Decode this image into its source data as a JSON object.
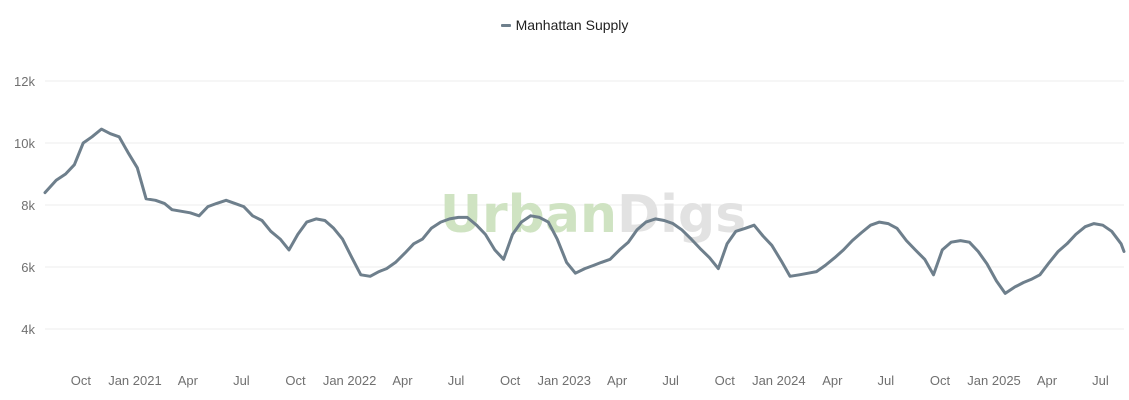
{
  "legend": {
    "label": "Manhattan Supply"
  },
  "watermark": {
    "part1": "Urban",
    "part2": "Digs",
    "color1": "#cfe3c2",
    "color2": "#e2e2e2"
  },
  "colors": {
    "series": "#6e7f8c",
    "grid": "#ececec",
    "tick_text": "#707070"
  },
  "chart_data": {
    "type": "line",
    "title": "",
    "xlabel": "",
    "ylabel": "",
    "ylim": [
      3000,
      13000
    ],
    "yticks": [
      4000,
      6000,
      8000,
      10000,
      12000
    ],
    "ytick_labels": [
      "4k",
      "6k",
      "8k",
      "10k",
      "12k"
    ],
    "xlim": [
      "2020-08-01",
      "2025-08-10"
    ],
    "xticks": [
      {
        "date": "2020-10-01",
        "label": "Oct"
      },
      {
        "date": "2021-01-01",
        "label": "Jan 2021"
      },
      {
        "date": "2021-04-01",
        "label": "Apr"
      },
      {
        "date": "2021-07-01",
        "label": "Jul"
      },
      {
        "date": "2021-10-01",
        "label": "Oct"
      },
      {
        "date": "2022-01-01",
        "label": "Jan 2022"
      },
      {
        "date": "2022-04-01",
        "label": "Apr"
      },
      {
        "date": "2022-07-01",
        "label": "Jul"
      },
      {
        "date": "2022-10-01",
        "label": "Oct"
      },
      {
        "date": "2023-01-01",
        "label": "Jan 2023"
      },
      {
        "date": "2023-04-01",
        "label": "Apr"
      },
      {
        "date": "2023-07-01",
        "label": "Jul"
      },
      {
        "date": "2023-10-01",
        "label": "Oct"
      },
      {
        "date": "2024-01-01",
        "label": "Jan 2024"
      },
      {
        "date": "2024-04-01",
        "label": "Apr"
      },
      {
        "date": "2024-07-01",
        "label": "Jul"
      },
      {
        "date": "2024-10-01",
        "label": "Oct"
      },
      {
        "date": "2025-01-01",
        "label": "Jan 2025"
      },
      {
        "date": "2025-04-01",
        "label": "Apr"
      },
      {
        "date": "2025-07-01",
        "label": "Jul"
      }
    ],
    "grid": true,
    "legend_position": "top-center",
    "series": [
      {
        "name": "Manhattan Supply",
        "x": [
          "2020-08-01",
          "2020-08-20",
          "2020-09-05",
          "2020-09-20",
          "2020-10-05",
          "2020-10-20",
          "2020-11-05",
          "2020-11-20",
          "2020-12-05",
          "2020-12-20",
          "2021-01-05",
          "2021-01-20",
          "2021-02-05",
          "2021-02-20",
          "2021-03-05",
          "2021-03-20",
          "2021-04-05",
          "2021-04-20",
          "2021-05-05",
          "2021-05-20",
          "2021-06-05",
          "2021-06-20",
          "2021-07-05",
          "2021-07-20",
          "2021-08-05",
          "2021-08-20",
          "2021-09-05",
          "2021-09-20",
          "2021-10-05",
          "2021-10-20",
          "2021-11-05",
          "2021-11-20",
          "2021-12-05",
          "2021-12-20",
          "2022-01-05",
          "2022-01-20",
          "2022-02-05",
          "2022-02-20",
          "2022-03-05",
          "2022-03-20",
          "2022-04-05",
          "2022-04-20",
          "2022-05-05",
          "2022-05-20",
          "2022-06-05",
          "2022-06-20",
          "2022-07-05",
          "2022-07-20",
          "2022-08-05",
          "2022-08-20",
          "2022-09-05",
          "2022-09-20",
          "2022-10-05",
          "2022-10-20",
          "2022-11-05",
          "2022-11-20",
          "2022-12-05",
          "2022-12-20",
          "2023-01-05",
          "2023-01-20",
          "2023-02-05",
          "2023-02-20",
          "2023-03-05",
          "2023-03-20",
          "2023-04-05",
          "2023-04-20",
          "2023-05-05",
          "2023-05-20",
          "2023-06-05",
          "2023-06-20",
          "2023-07-05",
          "2023-07-20",
          "2023-08-05",
          "2023-08-20",
          "2023-09-05",
          "2023-09-20",
          "2023-10-05",
          "2023-10-20",
          "2023-11-05",
          "2023-11-20",
          "2023-12-05",
          "2023-12-20",
          "2024-01-05",
          "2024-01-20",
          "2024-02-05",
          "2024-02-20",
          "2024-03-05",
          "2024-03-20",
          "2024-04-05",
          "2024-04-20",
          "2024-05-05",
          "2024-05-20",
          "2024-06-05",
          "2024-06-20",
          "2024-07-05",
          "2024-07-20",
          "2024-08-05",
          "2024-08-20",
          "2024-09-05",
          "2024-09-20",
          "2024-10-05",
          "2024-10-20",
          "2024-11-05",
          "2024-11-20",
          "2024-12-05",
          "2024-12-20",
          "2025-01-05",
          "2025-01-20",
          "2025-02-05",
          "2025-02-20",
          "2025-03-05",
          "2025-03-20",
          "2025-04-05",
          "2025-04-20",
          "2025-05-05",
          "2025-05-20",
          "2025-06-05",
          "2025-06-20",
          "2025-07-05",
          "2025-07-20",
          "2025-08-05",
          "2025-08-10"
        ],
        "values": [
          8400,
          8800,
          9000,
          9300,
          10000,
          10200,
          10450,
          10300,
          10200,
          9700,
          9200,
          8200,
          8150,
          8050,
          7850,
          7800,
          7750,
          7650,
          7950,
          8050,
          8150,
          8050,
          7950,
          7650,
          7500,
          7150,
          6900,
          6550,
          7050,
          7450,
          7550,
          7500,
          7250,
          6900,
          6300,
          5750,
          5700,
          5850,
          5950,
          6150,
          6450,
          6750,
          6900,
          7250,
          7450,
          7550,
          7600,
          7600,
          7350,
          7050,
          6550,
          6250,
          7050,
          7450,
          7650,
          7600,
          7450,
          6900,
          6150,
          5800,
          5950,
          6050,
          6150,
          6250,
          6550,
          6800,
          7200,
          7450,
          7550,
          7500,
          7400,
          7200,
          6900,
          6600,
          6300,
          5950,
          6750,
          7150,
          7250,
          7350,
          7000,
          6700,
          6200,
          5700,
          5750,
          5800,
          5850,
          6050,
          6300,
          6550,
          6850,
          7100,
          7350,
          7450,
          7400,
          7250,
          6850,
          6550,
          6250,
          5750,
          6550,
          6800,
          6850,
          6800,
          6500,
          6100,
          5550,
          5150,
          5350,
          5500,
          5600,
          5750,
          6150,
          6500,
          6750,
          7050,
          7300,
          7400,
          7350,
          7150,
          6750,
          6500
        ]
      }
    ]
  }
}
